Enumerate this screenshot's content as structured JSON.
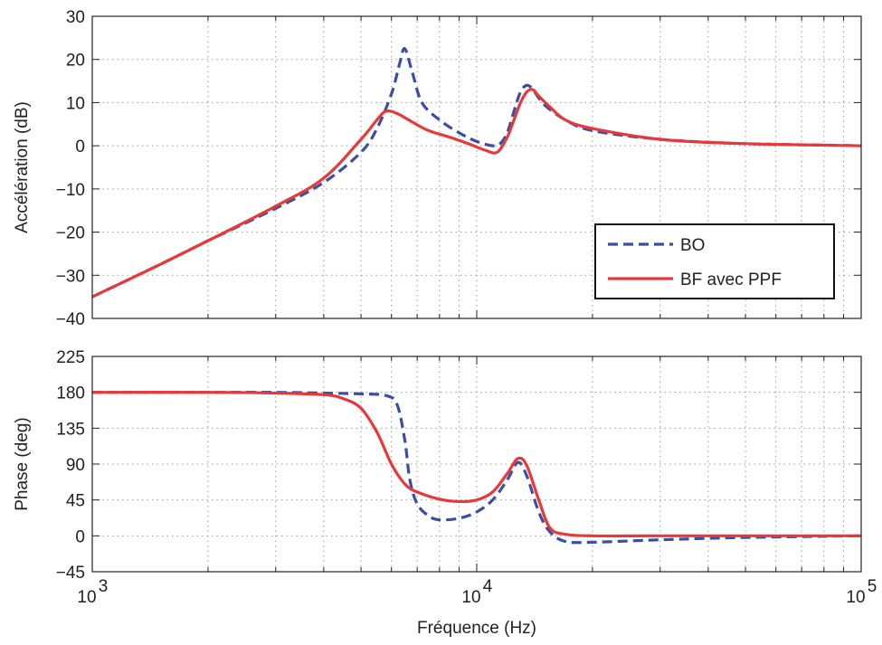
{
  "chart_data": [
    {
      "type": "line",
      "xscale": "log",
      "xlim": [
        1000,
        100000
      ],
      "ylim": [
        -40,
        30
      ],
      "yticks": [
        -40,
        -30,
        -20,
        -10,
        0,
        10,
        20,
        30
      ],
      "ytick_labels": [
        "−40",
        "−30",
        "−20",
        "−10",
        "0",
        "10",
        "20",
        "30"
      ],
      "ylabel": "Accélération (dB)",
      "xlabel": "",
      "grid": true,
      "legend": {
        "position": "bottom-right",
        "entries": [
          "BO",
          "BF avec PPF"
        ]
      },
      "series": [
        {
          "name": "BO",
          "style": "dashed",
          "color": "#3a4fa3",
          "x": [
            1000,
            1500,
            2000,
            3000,
            4000,
            5000,
            5500,
            6000,
            6300,
            6500,
            6800,
            7200,
            8000,
            9000,
            10000,
            11000,
            11500,
            12000,
            12500,
            13000,
            13500,
            14000,
            15000,
            17000,
            20000,
            30000,
            50000,
            100000
          ],
          "y": [
            -35,
            -27.5,
            -22,
            -14.5,
            -8.5,
            -1.5,
            4,
            12,
            19,
            22.5,
            17,
            10,
            6,
            3,
            1,
            0,
            0.5,
            3,
            8,
            12.5,
            14,
            13,
            9.5,
            6,
            3.5,
            1.5,
            0.5,
            0
          ]
        },
        {
          "name": "BF avec PPF",
          "style": "solid",
          "color": "#e8393a",
          "x": [
            1000,
            1500,
            2000,
            3000,
            4000,
            5000,
            5500,
            5800,
            6200,
            6800,
            7500,
            8500,
            9500,
            10500,
            11300,
            12000,
            12500,
            13000,
            13500,
            14000,
            14500,
            15500,
            17000,
            20000,
            30000,
            50000,
            100000
          ],
          "y": [
            -35,
            -27.5,
            -22,
            -14,
            -7.5,
            1.5,
            6,
            8,
            7.5,
            5.5,
            3.5,
            2,
            0.5,
            -1,
            -1.5,
            2,
            6,
            10,
            12.5,
            13,
            11.5,
            9,
            6,
            4,
            1.5,
            0.5,
            0
          ]
        }
      ]
    },
    {
      "type": "line",
      "xscale": "log",
      "xlim": [
        1000,
        100000
      ],
      "ylim": [
        -45,
        225
      ],
      "yticks": [
        -45,
        0,
        45,
        90,
        135,
        180,
        225
      ],
      "ytick_labels": [
        "−45",
        "0",
        "45",
        "90",
        "135",
        "180",
        "225"
      ],
      "xticks": [
        1000,
        10000,
        100000
      ],
      "xtick_labels": [
        {
          "base": "10",
          "exp": "3"
        },
        {
          "base": "10",
          "exp": "4"
        },
        {
          "base": "10",
          "exp": "5"
        }
      ],
      "ylabel": "Phase (deg)",
      "xlabel": "Fréquence (Hz)",
      "grid": true,
      "series": [
        {
          "name": "BO",
          "style": "dashed",
          "color": "#3a4fa3",
          "x": [
            1000,
            2000,
            3000,
            4000,
            5000,
            5800,
            6200,
            6500,
            6700,
            7000,
            7500,
            8000,
            9000,
            10000,
            11000,
            12000,
            12800,
            13500,
            14500,
            15500,
            17000,
            20000,
            30000,
            50000,
            100000
          ],
          "y": [
            180,
            180,
            180,
            179,
            178,
            176,
            165,
            120,
            70,
            40,
            25,
            20,
            22,
            30,
            45,
            70,
            92,
            75,
            30,
            5,
            -7,
            -8,
            -5,
            -2,
            0
          ]
        },
        {
          "name": "BF avec PPF",
          "style": "solid",
          "color": "#e8393a",
          "x": [
            1000,
            2000,
            3000,
            4000,
            4500,
            5000,
            5500,
            6000,
            6500,
            7000,
            8000,
            9000,
            10000,
            11000,
            12000,
            12800,
            13500,
            14500,
            15500,
            17000,
            20000,
            30000,
            50000,
            100000
          ],
          "y": [
            180,
            180,
            179,
            177,
            172,
            160,
            130,
            90,
            65,
            55,
            46,
            43,
            45,
            55,
            78,
            97,
            88,
            45,
            10,
            2,
            0,
            0,
            0,
            0
          ]
        }
      ]
    }
  ]
}
